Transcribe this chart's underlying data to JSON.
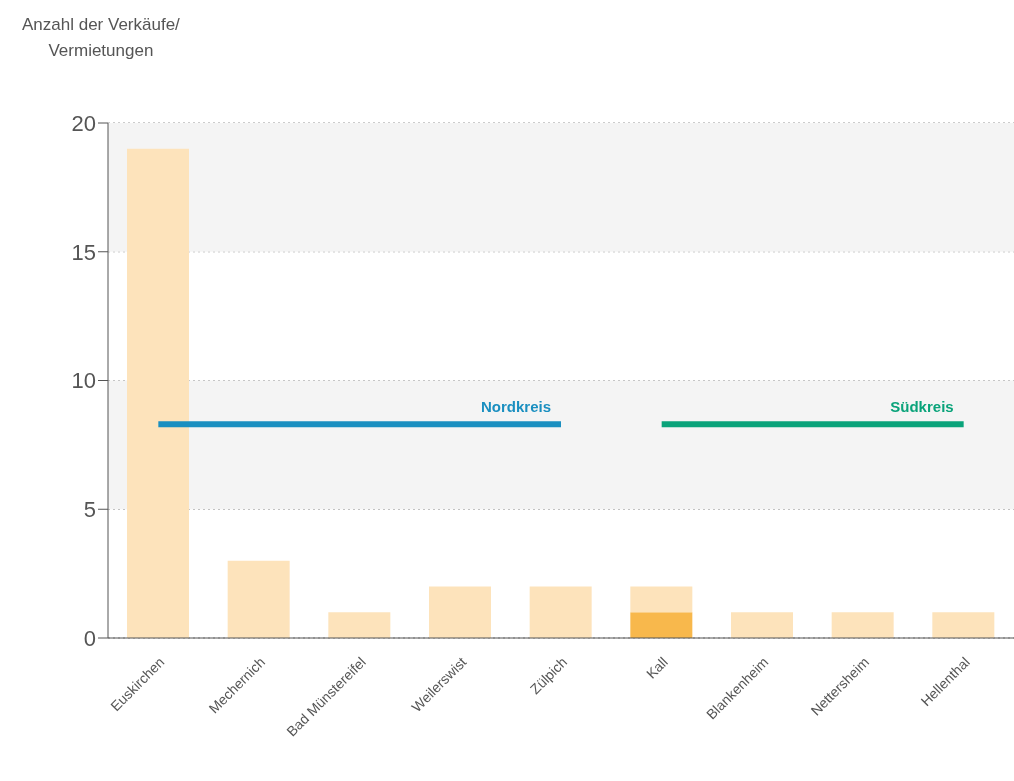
{
  "chart_data": {
    "type": "bar",
    "ylabel": "Anzahl der Verkäufe/ Vermietungen",
    "categories": [
      "Euskirchen",
      "Mechernich",
      "Bad Münstereifel",
      "Weilerswist",
      "Zülpich",
      "Kall",
      "Blankenheim",
      "Nettersheim",
      "Hellenthal"
    ],
    "stacked": true,
    "series": [
      {
        "color": "#f8b84c",
        "values": [
          null,
          null,
          null,
          null,
          null,
          1,
          null,
          null,
          null
        ]
      },
      {
        "color": "#fde3bb",
        "values": [
          19,
          3,
          1,
          2,
          2,
          1,
          1,
          1,
          1
        ]
      },
      {
        "type": "line",
        "name": "Nordkreis",
        "color": "#1a8fc0",
        "values": [
          8.3,
          8.3,
          8.3,
          8.3,
          8.3,
          null,
          null,
          null,
          null
        ]
      },
      {
        "type": "line",
        "name": "Südkreis",
        "color": "#0aa37a",
        "values": [
          null,
          null,
          null,
          null,
          null,
          8.3,
          8.3,
          8.3,
          8.3
        ]
      }
    ],
    "ylim": [
      0,
      20
    ],
    "yticks": [
      0,
      5,
      10,
      15,
      20
    ],
    "grid": "y",
    "line_style": "solid",
    "marker": "none",
    "bands": [
      {
        "axis": "y",
        "from": 5,
        "to": 10,
        "color": "#f4f4f4"
      },
      {
        "axis": "y",
        "from": 15,
        "to": 20,
        "color": "#f4f4f4"
      }
    ]
  }
}
